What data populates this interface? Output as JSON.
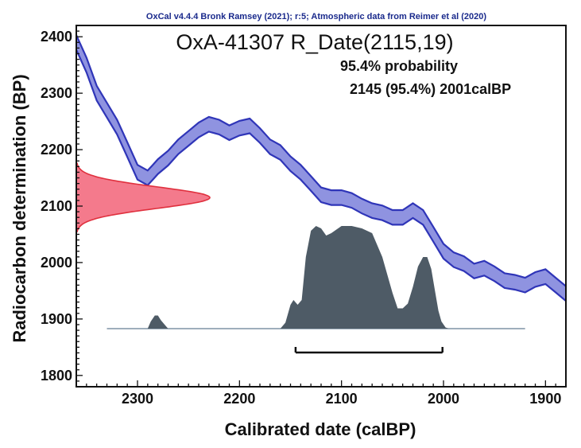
{
  "chart_data": {
    "type": "area",
    "credit": "OxCal v4.4.4 Bronk Ramsey (2021); r:5; Atmospheric data from Reimer et al (2020)",
    "title": "OxA-41307 R_Date(2115,19)",
    "range_heading": "95.4% probability",
    "range_text": "2145 (95.4%) 2001calBP",
    "xlabel": "Calibrated date (calBP)",
    "ylabel": "Radiocarbon determination (BP)",
    "xlim": [
      2360,
      1880
    ],
    "ylim": [
      1780,
      2420
    ],
    "x_reversed": true,
    "x_ticks": [
      2300,
      2200,
      2100,
      2000,
      1900
    ],
    "y_ticks": [
      1800,
      1900,
      2000,
      2100,
      2200,
      2300,
      2400
    ],
    "colors": {
      "calibration_band": "#8f93e0",
      "calibration_edge": "#2f35b8",
      "radiocarbon_fill": "#f47a8c",
      "radiocarbon_edge": "#e0303e",
      "calibrated_fill": "#4e5b66",
      "baseline": "#7f93a6"
    },
    "calibration_curve": {
      "x": [
        2360,
        2350,
        2340,
        2330,
        2320,
        2310,
        2300,
        2290,
        2285,
        2280,
        2270,
        2260,
        2250,
        2240,
        2230,
        2220,
        2210,
        2200,
        2190,
        2180,
        2170,
        2160,
        2150,
        2140,
        2130,
        2120,
        2110,
        2100,
        2090,
        2080,
        2070,
        2060,
        2050,
        2040,
        2030,
        2020,
        2010,
        2000,
        1990,
        1980,
        1970,
        1960,
        1950,
        1940,
        1930,
        1920,
        1910,
        1900,
        1890,
        1880
      ],
      "y": [
        2390,
        2350,
        2300,
        2270,
        2240,
        2200,
        2160,
        2150,
        2160,
        2170,
        2185,
        2205,
        2220,
        2235,
        2245,
        2240,
        2230,
        2238,
        2242,
        2225,
        2205,
        2195,
        2175,
        2160,
        2140,
        2120,
        2115,
        2115,
        2110,
        2100,
        2092,
        2088,
        2080,
        2080,
        2092,
        2080,
        2050,
        2020,
        2005,
        1998,
        1985,
        1990,
        1980,
        1968,
        1965,
        1960,
        1970,
        1975,
        1960,
        1945
      ],
      "band_halfwidth": 13
    },
    "radiocarbon_distribution": {
      "mean": 2115,
      "sd": 19
    },
    "calibrated_distribution": {
      "x": [
        2330,
        2290,
        2287,
        2283,
        2280,
        2277,
        2273,
        2270,
        2160,
        2155,
        2150,
        2147,
        2143,
        2139,
        2135,
        2130,
        2125,
        2120,
        2115,
        2110,
        2100,
        2090,
        2080,
        2070,
        2060,
        2050,
        2045,
        2040,
        2035,
        2030,
        2025,
        2020,
        2016,
        2012,
        2008,
        2005,
        2002,
        1998,
        1995,
        1990,
        1960,
        1920
      ],
      "density": [
        0,
        0,
        0.06,
        0.11,
        0.11,
        0.07,
        0.03,
        0,
        0,
        0.05,
        0.2,
        0.24,
        0.2,
        0.24,
        0.6,
        0.82,
        0.86,
        0.84,
        0.78,
        0.8,
        0.86,
        0.86,
        0.84,
        0.8,
        0.6,
        0.3,
        0.17,
        0.17,
        0.21,
        0.35,
        0.52,
        0.6,
        0.6,
        0.5,
        0.3,
        0.15,
        0.06,
        0.01,
        0,
        0,
        0,
        0
      ]
    },
    "range_bar": {
      "from": 2145,
      "to": 2001
    }
  }
}
